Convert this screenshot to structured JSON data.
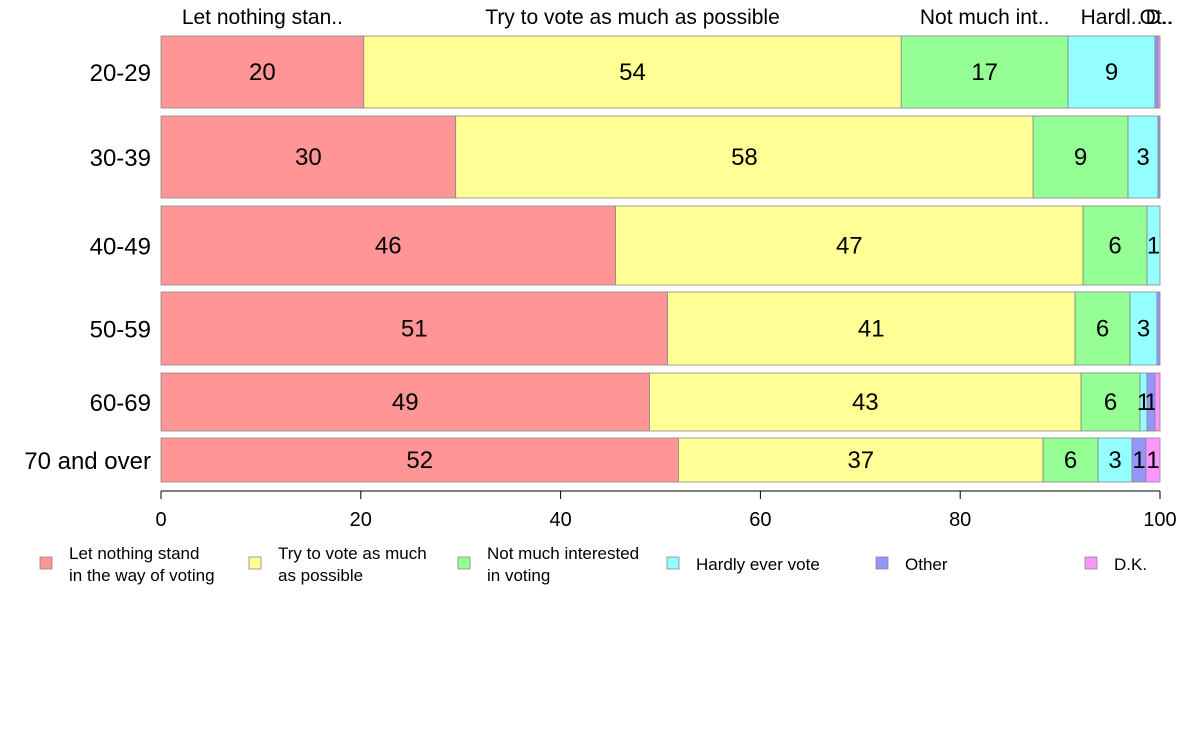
{
  "chart_data": {
    "type": "bar",
    "orientation": "horizontal",
    "stacked": true,
    "categories": [
      "20-29",
      "30-39",
      "40-49",
      "50-59",
      "60-69",
      "70 and over"
    ],
    "series": [
      {
        "name": "Let nothing stand in the way of voting",
        "legend_lines": [
          "Let nothing stand",
          "in the way of voting"
        ],
        "top_label": "Let nothing stan..",
        "color": "#ff9595",
        "values": [
          20.3,
          29.5,
          45.5,
          50.7,
          48.9,
          51.8
        ],
        "labels": [
          "20",
          "30",
          "46",
          "51",
          "49",
          "52"
        ]
      },
      {
        "name": "Try to vote as much as possible",
        "legend_lines": [
          "Try to vote as much",
          "as possible"
        ],
        "top_label": "Try to vote as much as possible",
        "color": "#ffff95",
        "values": [
          53.8,
          57.8,
          46.8,
          40.8,
          43.2,
          36.5
        ],
        "labels": [
          "54",
          "58",
          "47",
          "41",
          "43",
          "37"
        ]
      },
      {
        "name": "Not much interested in voting",
        "legend_lines": [
          "Not much interested",
          "in voting"
        ],
        "top_label": "Not much int..",
        "color": "#95ff95",
        "values": [
          16.7,
          9.5,
          6.4,
          5.5,
          5.9,
          5.5
        ],
        "labels": [
          "17",
          "9",
          "6",
          "6",
          "6",
          "6"
        ]
      },
      {
        "name": "Hardly ever vote",
        "legend_lines": [
          "Hardly ever vote"
        ],
        "top_label": "Hardl..",
        "color": "#95ffff",
        "values": [
          8.7,
          3.0,
          1.3,
          2.7,
          0.7,
          3.4
        ],
        "labels": [
          "9",
          "3",
          "1",
          "3",
          "1",
          "3"
        ]
      },
      {
        "name": "Other",
        "legend_lines": [
          "Other"
        ],
        "top_label": "Ot..",
        "color": "#9595ff",
        "values": [
          0.3,
          0.2,
          0.0,
          0.3,
          0.8,
          1.4
        ],
        "labels": [
          "",
          "",
          "",
          "",
          "1",
          "1"
        ]
      },
      {
        "name": "D.K.",
        "legend_lines": [
          "D.K."
        ],
        "top_label": "D..",
        "color": "#ff95ff",
        "values": [
          0.2,
          0.0,
          0.0,
          0.0,
          0.5,
          1.4
        ],
        "labels": [
          "",
          "",
          "",
          "",
          "",
          "1"
        ]
      }
    ],
    "xlim": [
      0,
      100
    ],
    "xticks": [
      0,
      20,
      40,
      60,
      80,
      100
    ],
    "grid": false,
    "legend_position": "bottom"
  }
}
